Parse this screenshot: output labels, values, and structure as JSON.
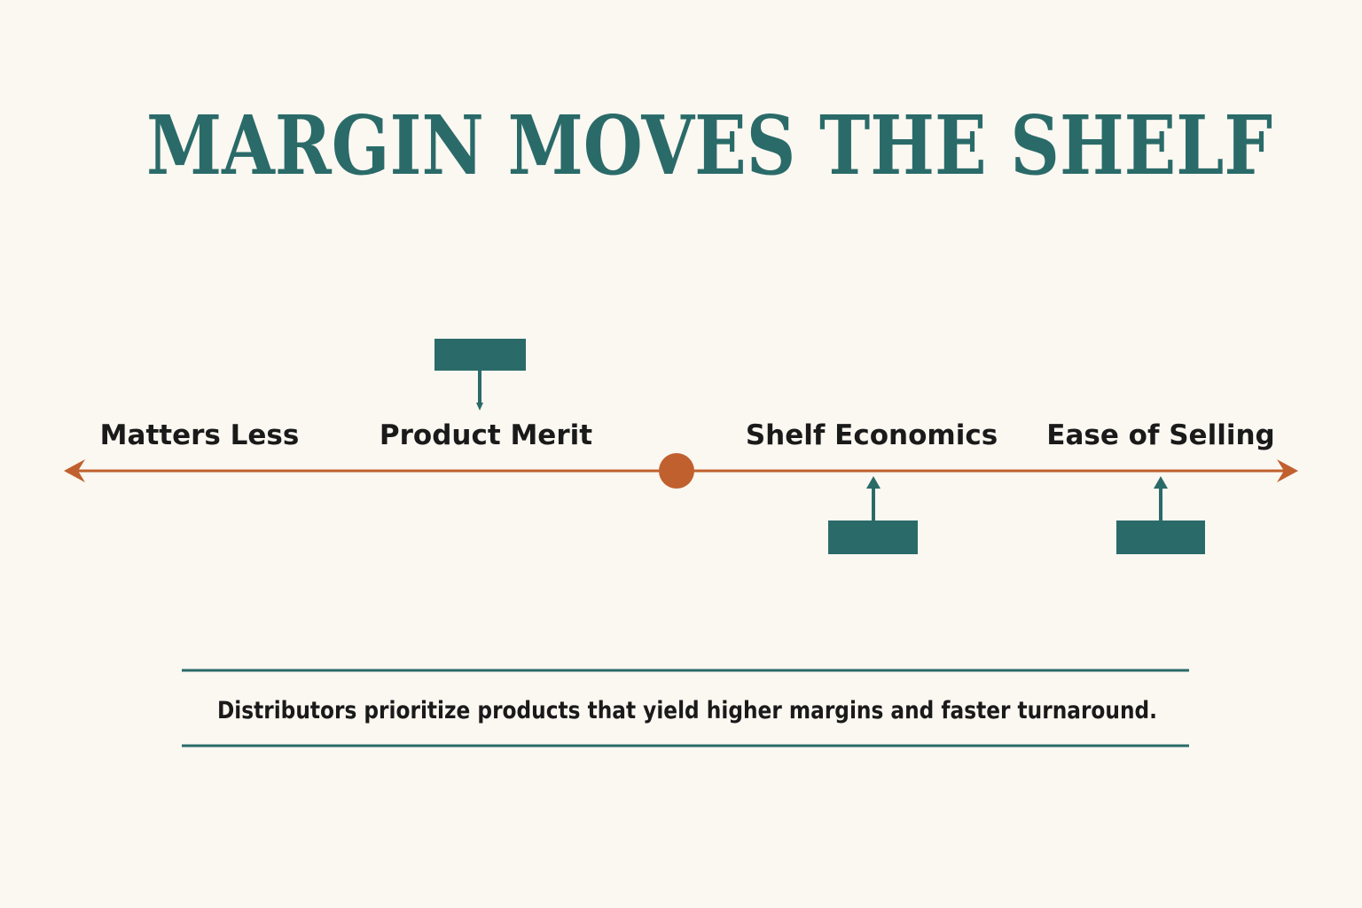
{
  "title": "MARGIN MOVES THE SHELF",
  "labels": [
    "Matters Less",
    "Product Merit",
    "Shelf Economics",
    "Ease of Selling"
  ],
  "caption": "Distributors prioritize products that yield higher margins and faster turnaround."
}
